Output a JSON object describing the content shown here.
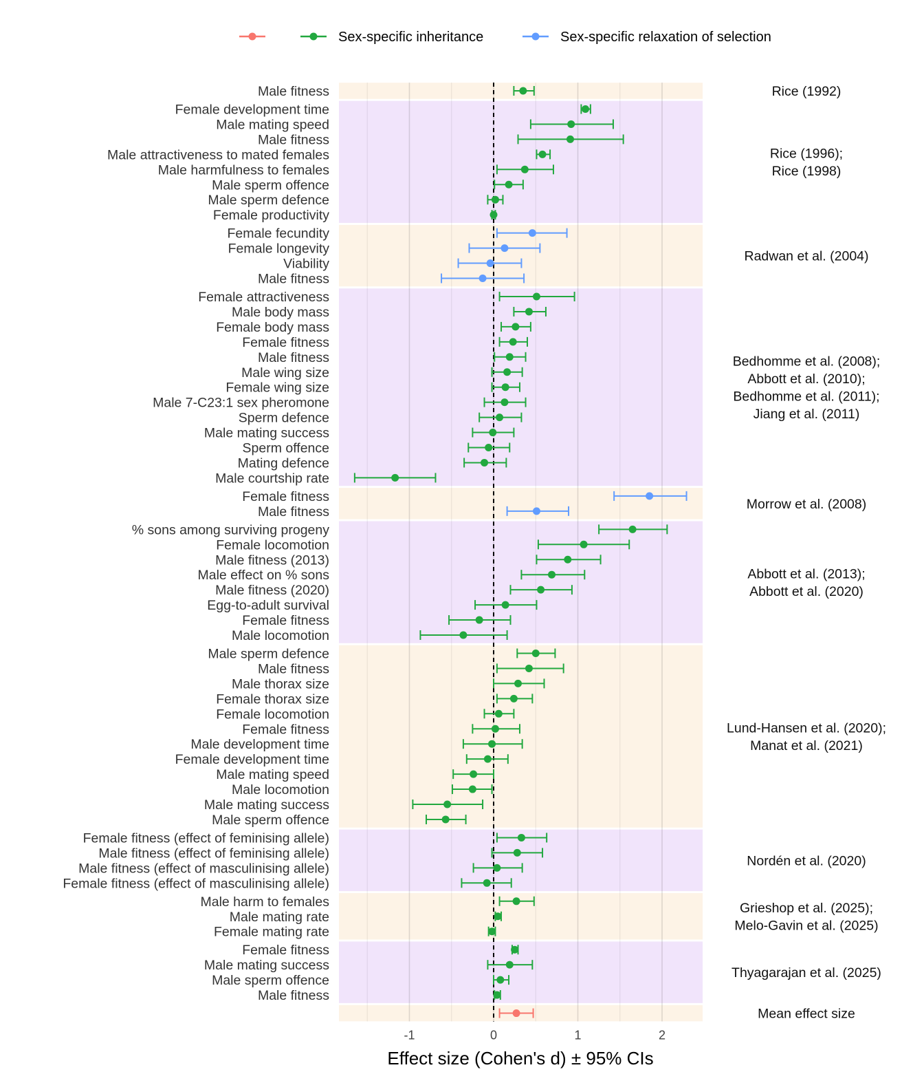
{
  "chart_data": {
    "type": "forest",
    "xlabel": "Effect size (Cohen's d) ± 95% CIs",
    "xlim": [
      -1.84,
      2.48
    ],
    "xticks": [
      -1,
      0,
      1,
      2
    ],
    "xtick_labels": [
      "-1",
      "0",
      "1",
      "2"
    ],
    "reference_line": 0,
    "grid": true,
    "legend_position": "top",
    "legend": [
      {
        "key": "mean",
        "label": "",
        "color": "#F8766D"
      },
      {
        "key": "inheritance",
        "label": "Sex-specific inheritance",
        "color": "#22A83F"
      },
      {
        "key": "relaxation",
        "label": "Sex-specific relaxation of selection",
        "color": "#619CFF"
      }
    ],
    "band_colors": [
      "#FDF3E6",
      "#F1E4FB"
    ],
    "groups": [
      {
        "study": [
          "Rice (1992)"
        ],
        "rows": [
          {
            "label": "Male fitness",
            "d": 0.35,
            "lo": 0.24,
            "hi": 0.48,
            "type": "inheritance"
          }
        ]
      },
      {
        "study": [
          "Rice (1996);",
          "Rice (1998)"
        ],
        "rows": [
          {
            "label": "Female development time",
            "d": 1.09,
            "lo": 1.04,
            "hi": 1.15,
            "type": "inheritance"
          },
          {
            "label": "Male mating speed",
            "d": 0.92,
            "lo": 0.44,
            "hi": 1.42,
            "type": "inheritance"
          },
          {
            "label": "Male fitness",
            "d": 0.91,
            "lo": 0.29,
            "hi": 1.54,
            "type": "inheritance"
          },
          {
            "label": "Male attractiveness to mated females",
            "d": 0.58,
            "lo": 0.51,
            "hi": 0.67,
            "type": "inheritance"
          },
          {
            "label": "Male harmfulness to females",
            "d": 0.37,
            "lo": 0.04,
            "hi": 0.71,
            "type": "inheritance"
          },
          {
            "label": "Male sperm offence",
            "d": 0.18,
            "lo": 0.01,
            "hi": 0.35,
            "type": "inheritance"
          },
          {
            "label": "Male sperm defence",
            "d": 0.02,
            "lo": -0.07,
            "hi": 0.11,
            "type": "inheritance"
          },
          {
            "label": "Female productivity",
            "d": 0.0,
            "lo": -0.02,
            "hi": 0.02,
            "type": "inheritance"
          }
        ]
      },
      {
        "study": [
          "Radwan et al. (2004)"
        ],
        "rows": [
          {
            "label": "Female fecundity",
            "d": 0.46,
            "lo": 0.04,
            "hi": 0.87,
            "type": "relaxation"
          },
          {
            "label": "Female longevity",
            "d": 0.13,
            "lo": -0.29,
            "hi": 0.55,
            "type": "relaxation"
          },
          {
            "label": "Viability",
            "d": -0.04,
            "lo": -0.42,
            "hi": 0.33,
            "type": "relaxation"
          },
          {
            "label": "Male fitness",
            "d": -0.13,
            "lo": -0.62,
            "hi": 0.36,
            "type": "relaxation"
          }
        ]
      },
      {
        "study": [
          "Bedhomme et al. (2008);",
          "Abbott et al. (2010);",
          "Bedhomme et al. (2011);",
          "Jiang et al. (2011)"
        ],
        "rows": [
          {
            "label": "Female attractiveness",
            "d": 0.51,
            "lo": 0.07,
            "hi": 0.96,
            "type": "inheritance"
          },
          {
            "label": "Male body mass",
            "d": 0.42,
            "lo": 0.24,
            "hi": 0.62,
            "type": "inheritance"
          },
          {
            "label": "Female body mass",
            "d": 0.26,
            "lo": 0.09,
            "hi": 0.44,
            "type": "inheritance"
          },
          {
            "label": "Female fitness",
            "d": 0.23,
            "lo": 0.07,
            "hi": 0.4,
            "type": "inheritance"
          },
          {
            "label": "Male fitness",
            "d": 0.19,
            "lo": 0.01,
            "hi": 0.38,
            "type": "inheritance"
          },
          {
            "label": "Male wing size",
            "d": 0.16,
            "lo": -0.02,
            "hi": 0.34,
            "type": "inheritance"
          },
          {
            "label": "Female wing size",
            "d": 0.14,
            "lo": -0.02,
            "hi": 0.31,
            "type": "inheritance"
          },
          {
            "label": "Male 7-C23:1 sex pheromone",
            "d": 0.13,
            "lo": -0.11,
            "hi": 0.38,
            "type": "inheritance"
          },
          {
            "label": "Sperm defence",
            "d": 0.07,
            "lo": -0.17,
            "hi": 0.33,
            "type": "inheritance"
          },
          {
            "label": "Male mating success",
            "d": -0.01,
            "lo": -0.25,
            "hi": 0.24,
            "type": "inheritance"
          },
          {
            "label": "Sperm offence",
            "d": -0.06,
            "lo": -0.3,
            "hi": 0.19,
            "type": "inheritance"
          },
          {
            "label": "Mating defence",
            "d": -0.11,
            "lo": -0.35,
            "hi": 0.15,
            "type": "inheritance"
          },
          {
            "label": "Male courtship rate",
            "d": -1.17,
            "lo": -1.65,
            "hi": -0.69,
            "type": "inheritance"
          }
        ]
      },
      {
        "study": [
          "Morrow et al. (2008)"
        ],
        "rows": [
          {
            "label": "Female fitness",
            "d": 1.85,
            "lo": 1.43,
            "hi": 2.29,
            "type": "relaxation"
          },
          {
            "label": "Male fitness",
            "d": 0.51,
            "lo": 0.16,
            "hi": 0.89,
            "type": "relaxation"
          }
        ]
      },
      {
        "study": [
          "Abbott et al. (2013);",
          "Abbott et al. (2020)"
        ],
        "rows": [
          {
            "label": "% sons among surviving progeny",
            "d": 1.65,
            "lo": 1.25,
            "hi": 2.06,
            "type": "inheritance"
          },
          {
            "label": "Female locomotion",
            "d": 1.07,
            "lo": 0.53,
            "hi": 1.61,
            "type": "inheritance"
          },
          {
            "label": "Male fitness (2013)",
            "d": 0.88,
            "lo": 0.51,
            "hi": 1.27,
            "type": "inheritance"
          },
          {
            "label": "Male effect on % sons",
            "d": 0.69,
            "lo": 0.33,
            "hi": 1.08,
            "type": "inheritance"
          },
          {
            "label": "Male fitness (2020)",
            "d": 0.56,
            "lo": 0.2,
            "hi": 0.93,
            "type": "inheritance"
          },
          {
            "label": "Egg-to-adult survival",
            "d": 0.14,
            "lo": -0.22,
            "hi": 0.51,
            "type": "inheritance"
          },
          {
            "label": "Female fitness",
            "d": -0.17,
            "lo": -0.53,
            "hi": 0.2,
            "type": "inheritance"
          },
          {
            "label": "Male locomotion",
            "d": -0.36,
            "lo": -0.87,
            "hi": 0.16,
            "type": "inheritance"
          }
        ]
      },
      {
        "study": [
          "Lund-Hansen et al. (2020);",
          "Manat et al. (2021)"
        ],
        "rows": [
          {
            "label": "Male sperm defence",
            "d": 0.5,
            "lo": 0.28,
            "hi": 0.73,
            "type": "inheritance"
          },
          {
            "label": "Male fitness",
            "d": 0.42,
            "lo": 0.04,
            "hi": 0.83,
            "type": "inheritance"
          },
          {
            "label": "Male thorax size",
            "d": 0.29,
            "lo": 0.0,
            "hi": 0.6,
            "type": "inheritance"
          },
          {
            "label": "Female thorax size",
            "d": 0.24,
            "lo": 0.04,
            "hi": 0.46,
            "type": "inheritance"
          },
          {
            "label": "Female locomotion",
            "d": 0.06,
            "lo": -0.11,
            "hi": 0.24,
            "type": "inheritance"
          },
          {
            "label": "Female fitness",
            "d": 0.02,
            "lo": -0.25,
            "hi": 0.31,
            "type": "inheritance"
          },
          {
            "label": "Male development time",
            "d": -0.02,
            "lo": -0.36,
            "hi": 0.34,
            "type": "inheritance"
          },
          {
            "label": "Female development time",
            "d": -0.07,
            "lo": -0.32,
            "hi": 0.17,
            "type": "inheritance"
          },
          {
            "label": "Male mating speed",
            "d": -0.24,
            "lo": -0.48,
            "hi": 0.0,
            "type": "inheritance"
          },
          {
            "label": "Male locomotion",
            "d": -0.25,
            "lo": -0.49,
            "hi": -0.02,
            "type": "inheritance"
          },
          {
            "label": "Male mating success",
            "d": -0.55,
            "lo": -0.96,
            "hi": -0.13,
            "type": "inheritance"
          },
          {
            "label": "Male sperm offence",
            "d": -0.57,
            "lo": -0.8,
            "hi": -0.33,
            "type": "inheritance"
          }
        ]
      },
      {
        "study": [
          "Nordén et al. (2020)"
        ],
        "rows": [
          {
            "label": "Female fitness (effect of feminising allele)",
            "d": 0.33,
            "lo": 0.04,
            "hi": 0.63,
            "type": "inheritance"
          },
          {
            "label": "Male fitness (effect of feminising allele)",
            "d": 0.28,
            "lo": -0.02,
            "hi": 0.58,
            "type": "inheritance"
          },
          {
            "label": "Male fitness (effect of masculinising allele)",
            "d": 0.04,
            "lo": -0.24,
            "hi": 0.34,
            "type": "inheritance"
          },
          {
            "label": "Female fitness (effect of masculinising allele)",
            "d": -0.08,
            "lo": -0.38,
            "hi": 0.21,
            "type": "inheritance"
          }
        ]
      },
      {
        "study": [
          "Grieshop et al. (2025);",
          "Melo-Gavin et al. (2025)"
        ],
        "rows": [
          {
            "label": "Male harm to females",
            "d": 0.27,
            "lo": 0.07,
            "hi": 0.48,
            "type": "inheritance"
          },
          {
            "label": "Male mating rate",
            "d": 0.05,
            "lo": 0.02,
            "hi": 0.09,
            "type": "inheritance"
          },
          {
            "label": "Female mating rate",
            "d": -0.02,
            "lo": -0.06,
            "hi": 0.02,
            "type": "inheritance"
          }
        ]
      },
      {
        "study": [
          "Thyagarajan et al. (2025)"
        ],
        "rows": [
          {
            "label": "Female fitness",
            "d": 0.25,
            "lo": 0.22,
            "hi": 0.29,
            "type": "inheritance"
          },
          {
            "label": "Male mating success",
            "d": 0.19,
            "lo": -0.07,
            "hi": 0.46,
            "type": "inheritance"
          },
          {
            "label": "Male sperm offence",
            "d": 0.08,
            "lo": 0.0,
            "hi": 0.18,
            "type": "inheritance"
          },
          {
            "label": "Male fitness",
            "d": 0.04,
            "lo": 0.01,
            "hi": 0.08,
            "type": "inheritance"
          }
        ]
      },
      {
        "study": [
          "Mean effect size"
        ],
        "rows": [
          {
            "label": "",
            "d": 0.27,
            "lo": 0.07,
            "hi": 0.47,
            "type": "mean"
          }
        ]
      }
    ]
  }
}
